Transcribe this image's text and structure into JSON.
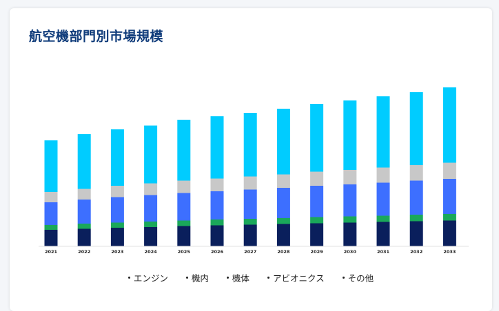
{
  "colors": {
    "title": "#0f3b7a",
    "axis": "#e2e2e2"
  },
  "chart_data": {
    "type": "bar",
    "stacked": true,
    "title": "航空機部門別市場規模",
    "xlabel": "",
    "ylabel": "",
    "grid": false,
    "legend_position": "bottom",
    "ylim": [
      0,
      240
    ],
    "categories": [
      "2021",
      "2022",
      "2023",
      "2024",
      "2025",
      "2026",
      "2027",
      "2028",
      "2029",
      "2030",
      "2031",
      "2032",
      "2033"
    ],
    "series": [
      {
        "name": "エンジン",
        "color": "#0a1f5c",
        "values": [
          24,
          25.5,
          27,
          28,
          29.5,
          30.5,
          31.5,
          32.5,
          33.5,
          34.5,
          35.5,
          36.5,
          37.5
        ]
      },
      {
        "name": "機内",
        "color": "#1aa85a",
        "values": [
          7,
          7.5,
          7.5,
          8,
          8,
          8.5,
          8.5,
          8.5,
          9,
          9,
          9,
          9.5,
          9.5
        ]
      },
      {
        "name": "機体",
        "color": "#3d6fff",
        "values": [
          33,
          35,
          37,
          38.5,
          40,
          41,
          42.5,
          44,
          45.5,
          46.5,
          48,
          49.5,
          51
        ]
      },
      {
        "name": "アビオニクス",
        "color": "#c8c8c8",
        "values": [
          15,
          15.5,
          16.5,
          17,
          18,
          18.5,
          19,
          19.5,
          20.5,
          21,
          22,
          22.5,
          23.5
        ]
      },
      {
        "name": "その他",
        "color": "#00ccff",
        "values": [
          75,
          79.5,
          82,
          84,
          88.5,
          90.5,
          92.5,
          95.5,
          98.5,
          101,
          103.5,
          106,
          109.5
        ]
      }
    ]
  }
}
